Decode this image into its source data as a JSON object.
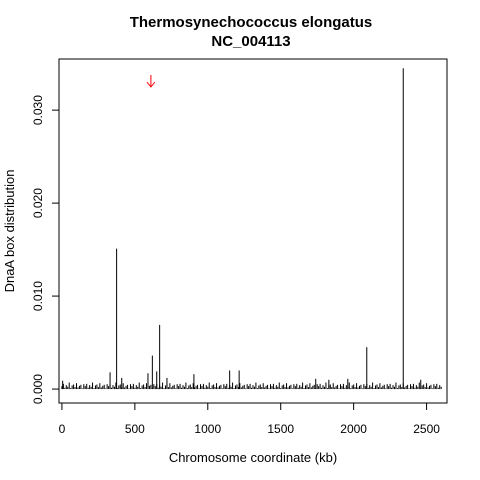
{
  "chart_data": {
    "type": "bar",
    "title": "Thermosynechococcus elongatus",
    "subtitle": "NC_004113",
    "xlabel": "Chromosome coordinate (kb)",
    "ylabel": "DnaA box distribution",
    "xlim": [
      -20,
      2640
    ],
    "ylim": [
      -0.0015,
      0.0355
    ],
    "xticks": [
      0,
      500,
      1000,
      1500,
      2000,
      2500
    ],
    "yticks": [
      0.0,
      0.01,
      0.02,
      0.03
    ],
    "ytick_labels": [
      "0.000",
      "0.010",
      "0.020",
      "0.030"
    ],
    "grid": false,
    "bar_color": "#000000",
    "marker": {
      "type": "arrow",
      "x": 610,
      "color": "#ff0000"
    },
    "peaks": [
      {
        "x": 5,
        "y": 0.0009
      },
      {
        "x": 330,
        "y": 0.0018
      },
      {
        "x": 375,
        "y": 0.0151
      },
      {
        "x": 410,
        "y": 0.0012
      },
      {
        "x": 590,
        "y": 0.0017
      },
      {
        "x": 620,
        "y": 0.0036
      },
      {
        "x": 650,
        "y": 0.0019
      },
      {
        "x": 670,
        "y": 0.0069
      },
      {
        "x": 720,
        "y": 0.0012
      },
      {
        "x": 905,
        "y": 0.0016
      },
      {
        "x": 1150,
        "y": 0.002
      },
      {
        "x": 1215,
        "y": 0.002
      },
      {
        "x": 1740,
        "y": 0.0011
      },
      {
        "x": 1830,
        "y": 0.001
      },
      {
        "x": 1960,
        "y": 0.0011
      },
      {
        "x": 2090,
        "y": 0.0045
      },
      {
        "x": 2340,
        "y": 0.0345
      },
      {
        "x": 2460,
        "y": 0.001
      }
    ],
    "baseline": {
      "x_start": 0,
      "x_end": 2600,
      "step": 10,
      "max_value": 0.0007
    }
  }
}
